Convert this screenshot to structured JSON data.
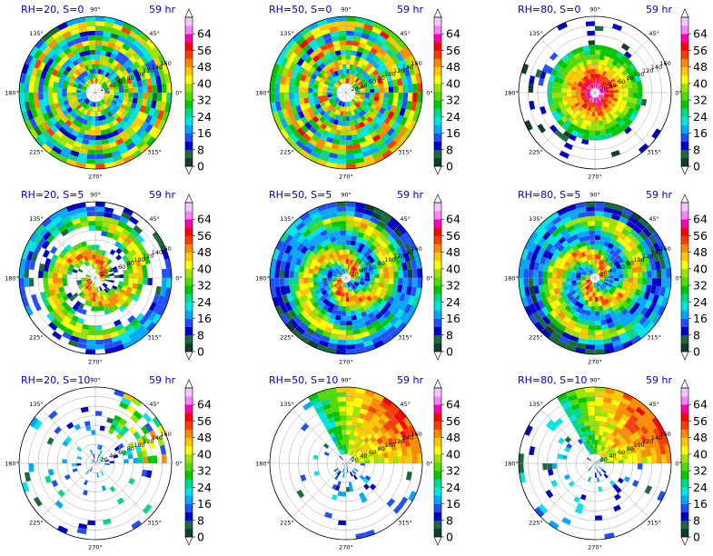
{
  "chart_data": [
    {
      "type": "heatmap",
      "title": "RH=20, S=0",
      "time_label": "59 hr",
      "rh": 20,
      "shear": 0,
      "structure": "rings"
    },
    {
      "type": "heatmap",
      "title": "RH=50, S=0",
      "time_label": "59 hr",
      "rh": 50,
      "shear": 0,
      "structure": "rings"
    },
    {
      "type": "heatmap",
      "title": "RH=80, S=0",
      "time_label": "59 hr",
      "rh": 80,
      "shear": 0,
      "structure": "compact"
    },
    {
      "type": "heatmap",
      "title": "RH=20, S=5",
      "time_label": "59 hr",
      "rh": 20,
      "shear": 5,
      "structure": "spiral"
    },
    {
      "type": "heatmap",
      "title": "RH=50, S=5",
      "time_label": "59 hr",
      "rh": 50,
      "shear": 5,
      "structure": "spiral"
    },
    {
      "type": "heatmap",
      "title": "RH=80, S=5",
      "time_label": "59 hr",
      "rh": 80,
      "shear": 5,
      "structure": "spiral"
    },
    {
      "type": "heatmap",
      "title": "RH=20, S=10",
      "time_label": "59 hr",
      "rh": 20,
      "shear": 10,
      "structure": "scattered"
    },
    {
      "type": "heatmap",
      "title": "RH=50, S=10",
      "time_label": "59 hr",
      "rh": 50,
      "shear": 10,
      "structure": "northeast"
    },
    {
      "type": "heatmap",
      "title": "RH=80, S=10",
      "time_label": "59 hr",
      "rh": 80,
      "shear": 10,
      "structure": "northeast"
    }
  ],
  "polar_axes": {
    "angle_labels": [
      "0°",
      "45°",
      "90°",
      "135°",
      "180°",
      "225°",
      "270°",
      "315°"
    ],
    "radius_labels": [
      "20",
      "40",
      "60",
      "80",
      "100",
      "120",
      "140",
      "160"
    ]
  },
  "colorbar": {
    "ticks": [
      "0",
      "8",
      "16",
      "24",
      "32",
      "40",
      "48",
      "56",
      "64"
    ],
    "levels": [
      0,
      4,
      8,
      12,
      16,
      20,
      24,
      28,
      32,
      36,
      40,
      44,
      48,
      52,
      56,
      60,
      64,
      68
    ],
    "colors": [
      "#0f3d2e",
      "#1a6b3c",
      "#0000c8",
      "#1e50ff",
      "#00a8ff",
      "#00e6e6",
      "#00d98c",
      "#00c800",
      "#50dc00",
      "#9be600",
      "#ffff00",
      "#ffc800",
      "#ff8c00",
      "#ff3c00",
      "#ff0000",
      "#ff00b4",
      "#ff80ff",
      "#f0c8ff"
    ]
  }
}
